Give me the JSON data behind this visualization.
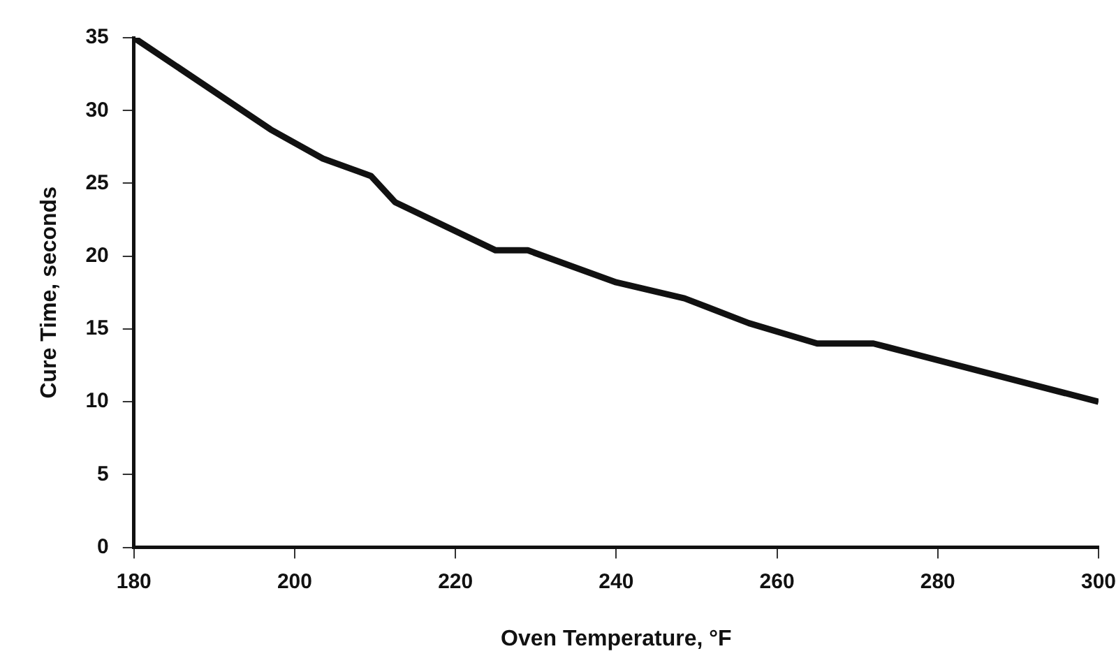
{
  "chart_data": {
    "type": "line",
    "xlabel": "Oven Temperature, °F",
    "ylabel": "Cure Time, seconds",
    "x": [
      180,
      197,
      203.5,
      209.5,
      212.5,
      225,
      229,
      240,
      248.5,
      256.5,
      265,
      272,
      300
    ],
    "series": [
      {
        "color": "#111111",
        "values": [
          35,
          28.7,
          26.7,
          25.5,
          23.7,
          20.4,
          20.4,
          18.2,
          17.1,
          15.4,
          14,
          14,
          10
        ]
      }
    ],
    "xlim": [
      180,
      300
    ],
    "xticks": [
      180,
      200,
      220,
      240,
      260,
      280,
      300
    ],
    "ylim": [
      0,
      35
    ],
    "yticks": [
      0,
      5,
      10,
      15,
      20,
      25,
      30,
      35
    ],
    "grid": false,
    "legend": false,
    "marker": "none",
    "line_style": "solid"
  }
}
